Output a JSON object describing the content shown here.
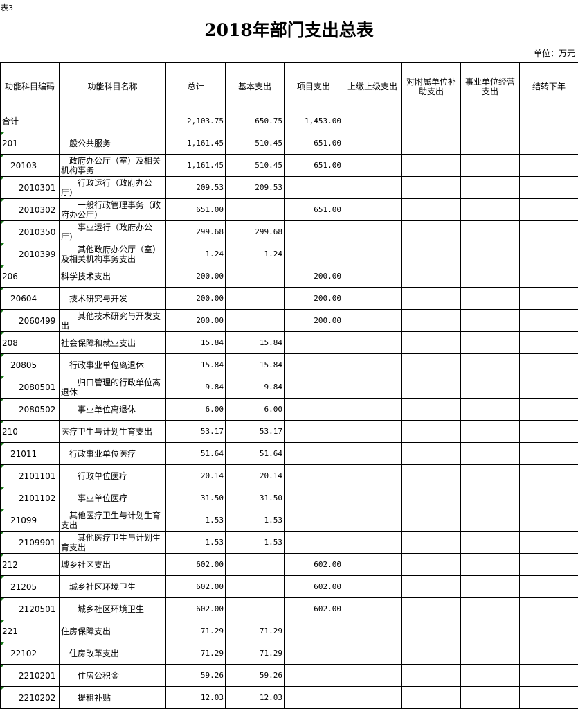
{
  "tag": "表3",
  "title": "2018年部门支出总表",
  "unit": "单位：万元",
  "headers": [
    "功能科目编码",
    "功能科目名称",
    "总计",
    "基本支出",
    "项目支出",
    "上缴上级支出",
    "对附属单位补助支出",
    "事业单位经营支出",
    "结转下年"
  ],
  "rows": [
    {
      "code": "合计",
      "name": "",
      "level": 1,
      "total": "2,103.75",
      "basic": "650.75",
      "project": "1,453.00"
    },
    {
      "code": "201",
      "name": "一般公共服务",
      "level": 1,
      "total": "1,161.45",
      "basic": "510.45",
      "project": "651.00"
    },
    {
      "code": "20103",
      "name": "政府办公厅（室）及相关机构事务",
      "level": 2,
      "total": "1,161.45",
      "basic": "510.45",
      "project": "651.00"
    },
    {
      "code": "2010301",
      "name": "行政运行（政府办公厅）",
      "level": 3,
      "total": "209.53",
      "basic": "209.53",
      "project": ""
    },
    {
      "code": "2010302",
      "name": "一般行政管理事务（政府办公厅）",
      "level": 3,
      "total": "651.00",
      "basic": "",
      "project": "651.00"
    },
    {
      "code": "2010350",
      "name": "事业运行（政府办公厅）",
      "level": 3,
      "total": "299.68",
      "basic": "299.68",
      "project": ""
    },
    {
      "code": "2010399",
      "name": "其他政府办公厅（室）及相关机构事务支出",
      "level": 3,
      "total": "1.24",
      "basic": "1.24",
      "project": ""
    },
    {
      "code": "206",
      "name": "科学技术支出",
      "level": 1,
      "total": "200.00",
      "basic": "",
      "project": "200.00"
    },
    {
      "code": "20604",
      "name": "技术研究与开发",
      "level": 2,
      "total": "200.00",
      "basic": "",
      "project": "200.00"
    },
    {
      "code": "2060499",
      "name": "其他技术研究与开发支出",
      "level": 3,
      "total": "200.00",
      "basic": "",
      "project": "200.00"
    },
    {
      "code": "208",
      "name": "社会保障和就业支出",
      "level": 1,
      "total": "15.84",
      "basic": "15.84",
      "project": ""
    },
    {
      "code": "20805",
      "name": "行政事业单位离退休",
      "level": 2,
      "total": "15.84",
      "basic": "15.84",
      "project": ""
    },
    {
      "code": "2080501",
      "name": "归口管理的行政单位离退休",
      "level": 3,
      "total": "9.84",
      "basic": "9.84",
      "project": ""
    },
    {
      "code": "2080502",
      "name": "事业单位离退休",
      "level": 3,
      "total": "6.00",
      "basic": "6.00",
      "project": ""
    },
    {
      "code": "210",
      "name": "医疗卫生与计划生育支出",
      "level": 1,
      "total": "53.17",
      "basic": "53.17",
      "project": ""
    },
    {
      "code": "21011",
      "name": "行政事业单位医疗",
      "level": 2,
      "total": "51.64",
      "basic": "51.64",
      "project": ""
    },
    {
      "code": "2101101",
      "name": "行政单位医疗",
      "level": 3,
      "total": "20.14",
      "basic": "20.14",
      "project": ""
    },
    {
      "code": "2101102",
      "name": "事业单位医疗",
      "level": 3,
      "total": "31.50",
      "basic": "31.50",
      "project": ""
    },
    {
      "code": "21099",
      "name": "其他医疗卫生与计划生育支出",
      "level": 2,
      "total": "1.53",
      "basic": "1.53",
      "project": ""
    },
    {
      "code": "2109901",
      "name": "其他医疗卫生与计划生育支出",
      "level": 3,
      "total": "1.53",
      "basic": "1.53",
      "project": ""
    },
    {
      "code": "212",
      "name": "城乡社区支出",
      "level": 1,
      "total": "602.00",
      "basic": "",
      "project": "602.00"
    },
    {
      "code": "21205",
      "name": "城乡社区环境卫生",
      "level": 2,
      "total": "602.00",
      "basic": "",
      "project": "602.00"
    },
    {
      "code": "2120501",
      "name": "城乡社区环境卫生",
      "level": 3,
      "total": "602.00",
      "basic": "",
      "project": "602.00"
    },
    {
      "code": "221",
      "name": "住房保障支出",
      "level": 1,
      "total": "71.29",
      "basic": "71.29",
      "project": ""
    },
    {
      "code": "22102",
      "name": "住房改革支出",
      "level": 2,
      "total": "71.29",
      "basic": "71.29",
      "project": ""
    },
    {
      "code": "2210201",
      "name": "住房公积金",
      "level": 3,
      "total": "59.26",
      "basic": "59.26",
      "project": ""
    },
    {
      "code": "2210202",
      "name": "提租补贴",
      "level": 3,
      "total": "12.03",
      "basic": "12.03",
      "project": ""
    }
  ]
}
